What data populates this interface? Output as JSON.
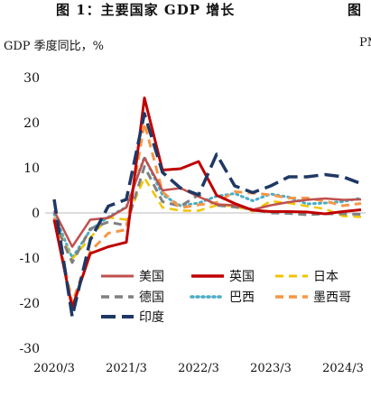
{
  "title": "图 1：主要国家 GDP 增长",
  "title_right": "图",
  "ylabel": "GDP 季度同比，%",
  "ylabel_right": "PM",
  "chart_data": {
    "type": "line",
    "title": "图 1：主要国家 GDP 增长",
    "ylabel": "GDP 季度同比，%",
    "x": [
      "2020/3",
      "2020/6",
      "2020/9",
      "2020/12",
      "2021/3",
      "2021/6",
      "2021/9",
      "2021/12",
      "2022/3",
      "2022/6",
      "2022/9",
      "2022/12",
      "2023/3",
      "2023/6",
      "2023/9",
      "2023/12",
      "2024/3",
      "2024/6"
    ],
    "xticks": [
      "2020/3",
      "2021/3",
      "2022/3",
      "2023/3",
      "2024/3"
    ],
    "yticks": [
      -30,
      -20,
      -10,
      0,
      10,
      20,
      30
    ],
    "ylim": [
      -30,
      30
    ],
    "legend_position": "lower-left",
    "series": [
      {
        "name": "美国",
        "color": "#c0504d",
        "dash": "solid",
        "width": 2.5,
        "values": [
          0.5,
          -7.5,
          -1.5,
          -1.1,
          1.2,
          12.2,
          5.0,
          5.5,
          3.6,
          1.9,
          1.7,
          0.7,
          1.7,
          2.4,
          2.9,
          3.2,
          2.9,
          3.0
        ]
      },
      {
        "name": "英国",
        "color": "#c00000",
        "dash": "solid",
        "width": 3,
        "values": [
          -1.5,
          -21.0,
          -9.0,
          -7.5,
          -6.5,
          25.5,
          9.5,
          9.8,
          11.4,
          3.9,
          2.1,
          0.6,
          0.3,
          0.3,
          0.2,
          -0.2,
          0.3,
          0.7
        ]
      },
      {
        "name": "日本",
        "color": "#f2c400",
        "dash": "dash",
        "width": 2.5,
        "values": [
          -1.8,
          -10.2,
          -5.5,
          -1.0,
          -1.5,
          7.8,
          1.2,
          0.5,
          0.5,
          1.7,
          1.5,
          0.4,
          2.6,
          2.2,
          1.5,
          0.9,
          -0.7,
          -0.9
        ]
      },
      {
        "name": "德国",
        "color": "#808080",
        "dash": "dash",
        "width": 3,
        "values": [
          -1.8,
          -11.0,
          -3.5,
          -2.0,
          -2.8,
          10.3,
          2.5,
          1.5,
          4.0,
          1.7,
          1.3,
          0.8,
          0.0,
          -0.1,
          -0.4,
          -0.2,
          -0.2,
          -0.3
        ]
      },
      {
        "name": "巴西",
        "color": "#4bacc6",
        "dash": "dot",
        "width": 3,
        "values": [
          -0.2,
          -10.0,
          -3.8,
          -0.9,
          1.3,
          12.4,
          4.0,
          1.6,
          2.2,
          3.7,
          4.3,
          2.7,
          4.2,
          3.5,
          2.0,
          2.2,
          2.5,
          3.3
        ]
      },
      {
        "name": "墨西哥",
        "color": "#f79646",
        "dash": "dash",
        "width": 3,
        "values": [
          -1.0,
          -20.0,
          -8.5,
          -4.5,
          -3.7,
          19.9,
          4.7,
          1.1,
          1.8,
          2.3,
          4.7,
          4.4,
          4.0,
          3.3,
          3.3,
          2.6,
          1.6,
          2.1
        ]
      },
      {
        "name": "印度",
        "color": "#1f3864",
        "dash": "dashlong",
        "width": 3.5,
        "values": [
          3.0,
          -23.0,
          -6.0,
          1.5,
          3.0,
          22.0,
          9.0,
          5.5,
          4.0,
          13.0,
          6.0,
          4.5,
          6.0,
          8.0,
          8.0,
          8.5,
          8.0,
          6.5
        ]
      }
    ]
  }
}
